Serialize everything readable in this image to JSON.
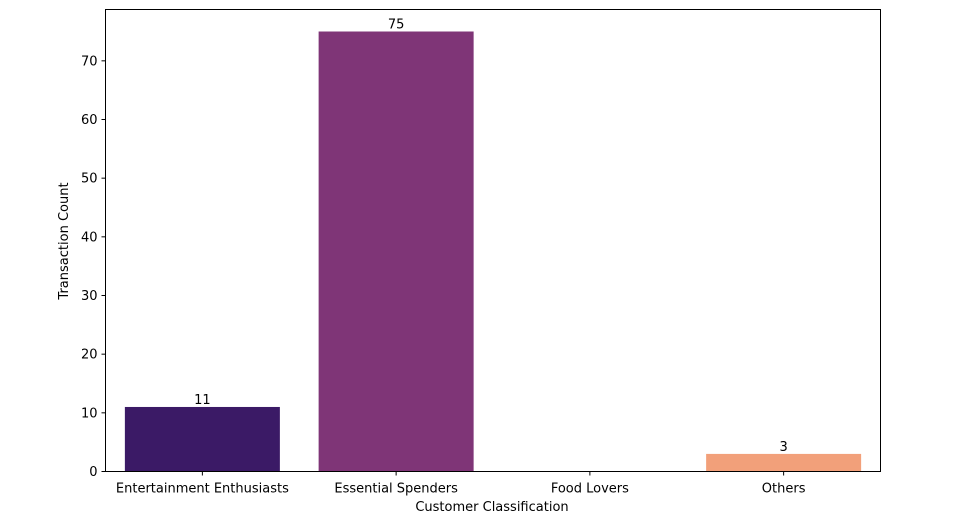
{
  "chart_data": {
    "type": "bar",
    "categories": [
      "Entertainment Enthusiasts",
      "Essential Spenders",
      "Food Lovers",
      "Others"
    ],
    "values": [
      11,
      75,
      0,
      3
    ],
    "data_labels": [
      "11",
      "75",
      "",
      "3"
    ],
    "colors": [
      "#3b1a66",
      "#7f3577",
      "#c2446e",
      "#f2a07a"
    ],
    "title": "",
    "xlabel": "Customer Classification",
    "ylabel": "Transaction Count",
    "ylim": [
      0,
      78.75
    ],
    "yticks": [
      0,
      10,
      20,
      30,
      40,
      50,
      60,
      70
    ],
    "grid": false,
    "legend": "none"
  }
}
